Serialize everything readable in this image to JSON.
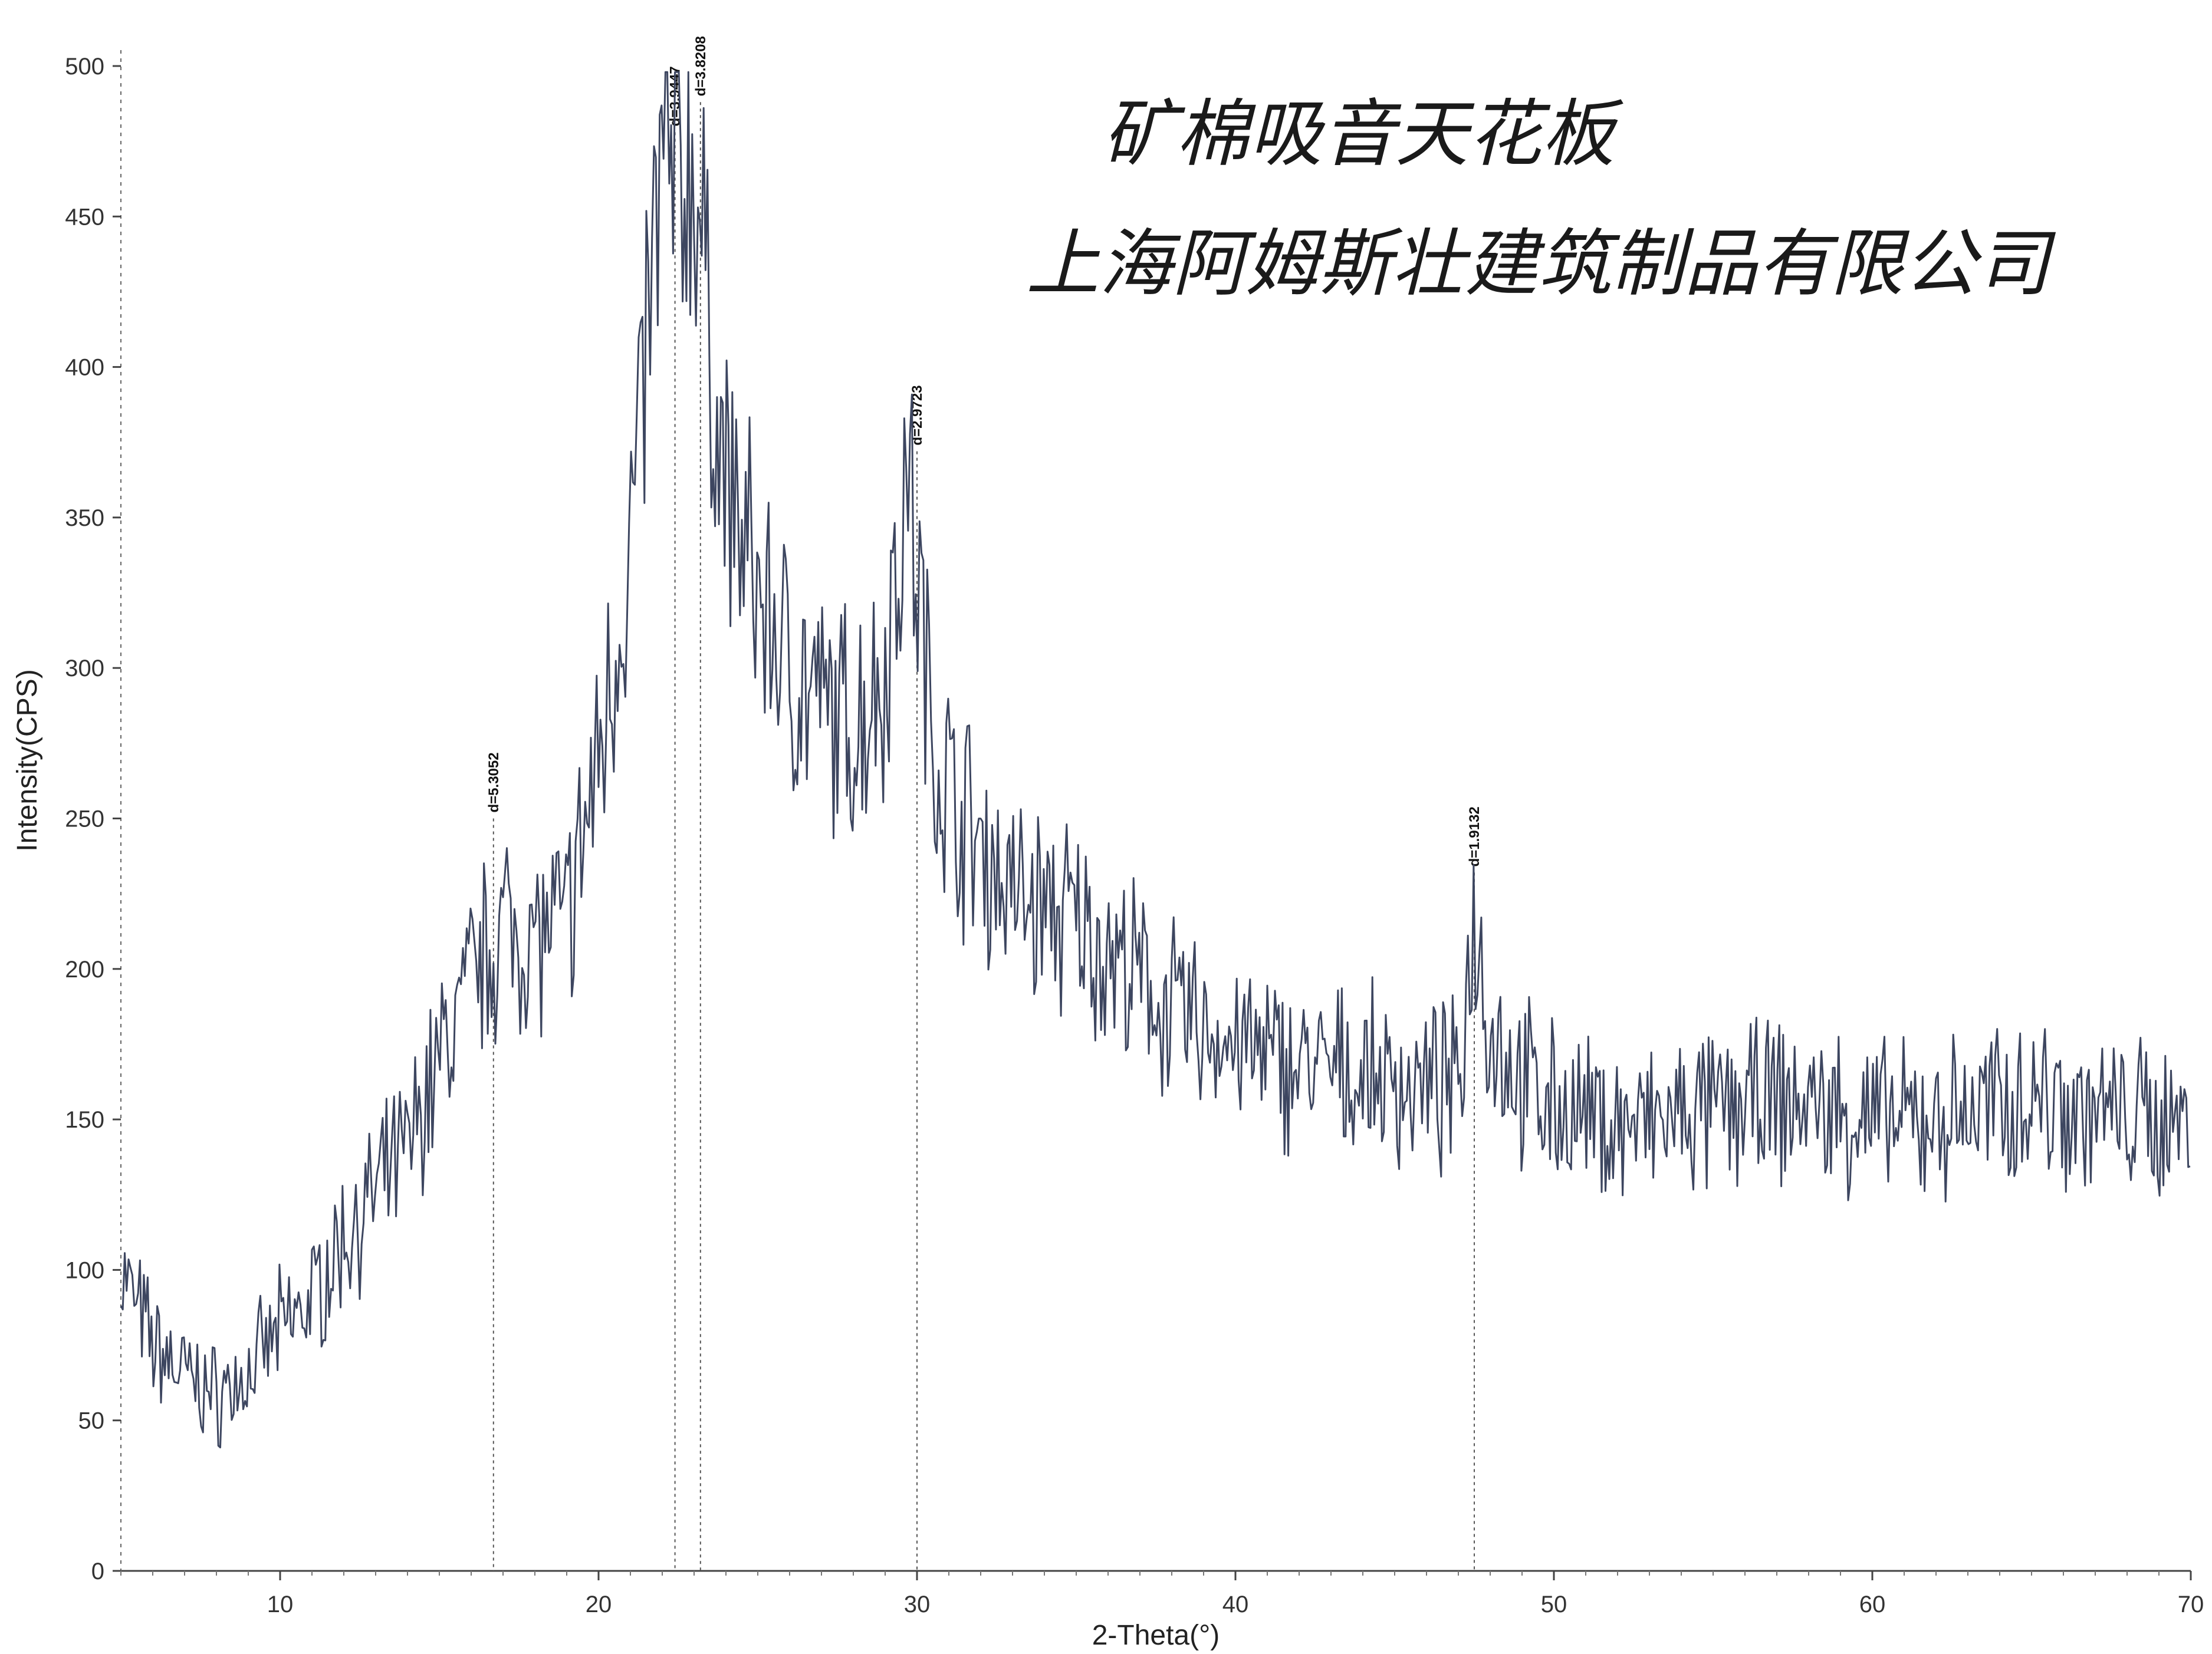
{
  "chart_data": {
    "type": "line",
    "title": "",
    "xlabel": "2-Theta(°)",
    "ylabel": "Intensity(CPS)",
    "xlim": [
      5,
      70
    ],
    "ylim": [
      0,
      500
    ],
    "xticks": [
      10,
      20,
      30,
      40,
      50,
      60,
      70
    ],
    "yticks": [
      0,
      50,
      100,
      150,
      200,
      250,
      300,
      350,
      400,
      450,
      500
    ],
    "grid": false,
    "series": [
      {
        "color": "#3d4660",
        "x": [
          5,
          6,
          7,
          8,
          9,
          10,
          11,
          12,
          13,
          14,
          15,
          16,
          17,
          18,
          19,
          20,
          21,
          22,
          22.5,
          23,
          23.5,
          24,
          25,
          26,
          27,
          28,
          29,
          29.7,
          30.5,
          31,
          32,
          33,
          34,
          35,
          36,
          37,
          38,
          39,
          40,
          41,
          42,
          43,
          44,
          45,
          46,
          47,
          47.5,
          48,
          49,
          50,
          51,
          52,
          53,
          54,
          55,
          56,
          57,
          58,
          59,
          60,
          61,
          62,
          63,
          64,
          65,
          66,
          67,
          68,
          69,
          70
        ],
        "y": [
          100,
          75,
          65,
          58,
          65,
          80,
          90,
          110,
          125,
          140,
          170,
          195,
          215,
          210,
          215,
          270,
          340,
          470,
          460,
          470,
          405,
          360,
          325,
          300,
          285,
          280,
          300,
          365,
          275,
          260,
          240,
          225,
          220,
          215,
          205,
          195,
          185,
          180,
          175,
          170,
          168,
          165,
          165,
          162,
          160,
          160,
          220,
          180,
          162,
          155,
          150,
          148,
          148,
          150,
          152,
          155,
          155,
          155,
          152,
          150,
          148,
          150,
          152,
          155,
          158,
          155,
          152,
          150,
          150,
          150
        ]
      }
    ],
    "peaks": [
      {
        "x": 16.7,
        "y": 250,
        "label": "d=5.3052"
      },
      {
        "x": 22.4,
        "y": 478,
        "label": "d=3.9447"
      },
      {
        "x": 23.2,
        "y": 488,
        "label": "d=3.8208"
      },
      {
        "x": 30.0,
        "y": 372,
        "label": "d=2.9723"
      },
      {
        "x": 47.5,
        "y": 232,
        "label": "d=1.9132"
      }
    ],
    "annotations": [
      "矿棉吸音天花板",
      "上海阿姆斯壮建筑制品有限公司"
    ]
  }
}
